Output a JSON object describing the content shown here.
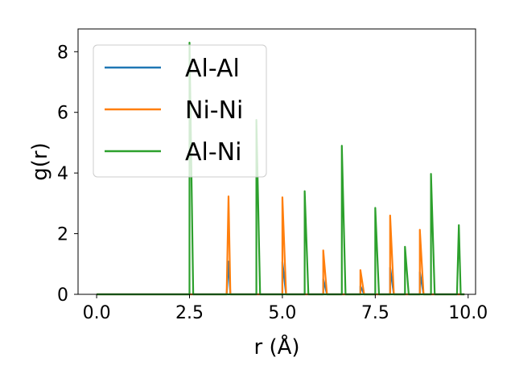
{
  "chart_data": {
    "type": "line",
    "title": "",
    "xlabel": "r (Å)",
    "ylabel": "g(r)",
    "xlim": [
      -0.5,
      10.2
    ],
    "ylim": [
      0,
      8.75
    ],
    "xticks": [
      0.0,
      2.5,
      5.0,
      7.5,
      10.0
    ],
    "xtick_labels": [
      "0.0",
      "2.5",
      "5.0",
      "7.5",
      "10.0"
    ],
    "yticks": [
      0,
      2,
      4,
      6,
      8
    ],
    "ytick_labels": [
      "0",
      "2",
      "4",
      "6",
      "8"
    ],
    "grid": false,
    "legend_position": "upper-left",
    "x_range": [
      0.0,
      9.9
    ],
    "bin_width": 0.1,
    "series": [
      {
        "name": "Al-Al",
        "color": "#1f77b4",
        "peaks": [
          [
            3.55,
            1.08
          ],
          [
            5.0,
            1.07
          ],
          [
            6.1,
            0.5
          ],
          [
            7.1,
            0.27
          ],
          [
            7.9,
            0.88
          ],
          [
            8.7,
            0.73
          ]
        ]
      },
      {
        "name": "Ni-Ni",
        "color": "#ff7f0e",
        "peaks": [
          [
            3.55,
            3.23
          ],
          [
            5.0,
            3.2
          ],
          [
            6.1,
            1.45
          ],
          [
            7.1,
            0.8
          ],
          [
            7.9,
            2.6
          ],
          [
            8.7,
            2.13
          ]
        ]
      },
      {
        "name": "Al-Ni",
        "color": "#2ca02c",
        "peaks": [
          [
            2.5,
            8.3
          ],
          [
            4.3,
            5.75
          ],
          [
            5.6,
            3.4
          ],
          [
            6.6,
            4.9
          ],
          [
            7.5,
            2.85
          ],
          [
            8.3,
            1.57
          ],
          [
            9.0,
            3.97
          ],
          [
            9.75,
            2.28
          ]
        ]
      }
    ]
  }
}
